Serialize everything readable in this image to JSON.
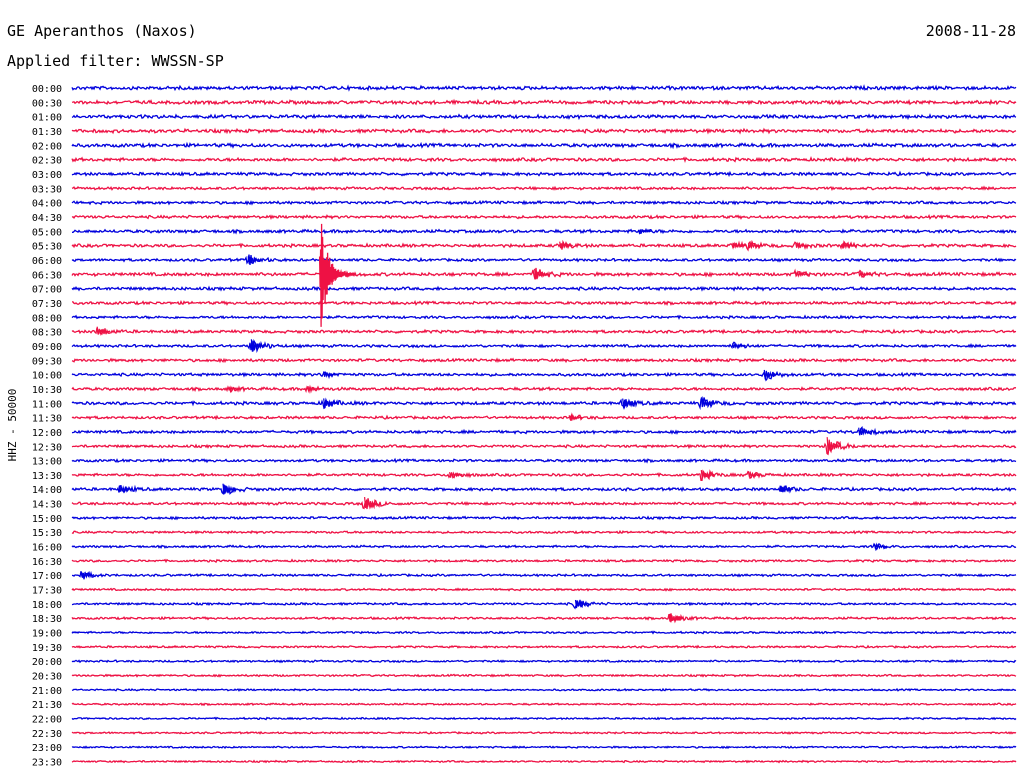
{
  "header": {
    "station": "GE Aperanthos (Naxos)",
    "filter": "Applied filter: WWSSN-SP",
    "date": "2008-11-28"
  },
  "chart_data": {
    "type": "line",
    "title": "GE Aperanthos (Naxos)",
    "subtitle": "Applied filter: WWSSN-SP",
    "date": "2008-11-28",
    "ylabel": "HHZ - 50000",
    "row_labels": [
      "00:00",
      "00:30",
      "01:00",
      "01:30",
      "02:00",
      "02:30",
      "03:00",
      "03:30",
      "04:00",
      "04:30",
      "05:00",
      "05:30",
      "06:00",
      "06:30",
      "07:00",
      "07:30",
      "08:00",
      "08:30",
      "09:00",
      "09:30",
      "10:00",
      "10:30",
      "11:00",
      "11:30",
      "12:00",
      "12:30",
      "13:00",
      "13:30",
      "14:00",
      "14:30",
      "15:00",
      "15:30",
      "16:00",
      "16:30",
      "17:00",
      "17:30",
      "18:00",
      "18:30",
      "19:00",
      "19:30",
      "20:00",
      "20:30",
      "21:00",
      "21:30",
      "22:00",
      "22:30",
      "23:00",
      "23:30"
    ],
    "trace_colors": [
      "#0000dd",
      "#ee1144"
    ],
    "noise_level": [
      1.6,
      1.6,
      1.6,
      1.6,
      1.6,
      1.5,
      1.4,
      1.2,
      1.3,
      1.3,
      1.4,
      1.4,
      1.2,
      1.5,
      1.4,
      1.3,
      1.2,
      1.3,
      1.2,
      1.3,
      1.3,
      1.3,
      1.4,
      1.2,
      1.3,
      1.2,
      1.2,
      1.2,
      1.3,
      1.2,
      1.1,
      1.0,
      1.0,
      1.0,
      1.0,
      0.9,
      1.0,
      1.0,
      0.9,
      0.9,
      0.9,
      0.9,
      0.8,
      0.8,
      0.8,
      0.8,
      0.8,
      0.8
    ],
    "events": [
      {
        "row": 10,
        "minute": 18.0,
        "amplitude": 2
      },
      {
        "row": 11,
        "minute": 15.5,
        "amplitude": 4
      },
      {
        "row": 11,
        "minute": 21.0,
        "amplitude": 3
      },
      {
        "row": 11,
        "minute": 21.5,
        "amplitude": 3
      },
      {
        "row": 11,
        "minute": 23.0,
        "amplitude": 3
      },
      {
        "row": 11,
        "minute": 24.5,
        "amplitude": 3
      },
      {
        "row": 12,
        "minute": 5.6,
        "amplitude": 5
      },
      {
        "row": 13,
        "minute": 8.0,
        "amplitude": 11
      },
      {
        "row": 13,
        "minute": 14.7,
        "amplitude": 6
      },
      {
        "row": 13,
        "minute": 23.0,
        "amplitude": 3
      },
      {
        "row": 13,
        "minute": 25.0,
        "amplitude": 3
      },
      {
        "row": 17,
        "minute": 0.8,
        "amplitude": 5
      },
      {
        "row": 18,
        "minute": 5.7,
        "amplitude": 8
      },
      {
        "row": 18,
        "minute": 21.0,
        "amplitude": 3
      },
      {
        "row": 20,
        "minute": 22.0,
        "amplitude": 6
      },
      {
        "row": 20,
        "minute": 8.0,
        "amplitude": 3
      },
      {
        "row": 21,
        "minute": 7.5,
        "amplitude": 3
      },
      {
        "row": 21,
        "minute": 5.0,
        "amplitude": 2
      },
      {
        "row": 22,
        "minute": 8.0,
        "amplitude": 5
      },
      {
        "row": 22,
        "minute": 17.5,
        "amplitude": 5
      },
      {
        "row": 22,
        "minute": 20.0,
        "amplitude": 6
      },
      {
        "row": 23,
        "minute": 15.8,
        "amplitude": 3
      },
      {
        "row": 24,
        "minute": 25.0,
        "amplitude": 5
      },
      {
        "row": 25,
        "minute": 24.0,
        "amplitude": 10
      },
      {
        "row": 27,
        "minute": 12.0,
        "amplitude": 4
      },
      {
        "row": 27,
        "minute": 20.0,
        "amplitude": 5
      },
      {
        "row": 27,
        "minute": 21.5,
        "amplitude": 3
      },
      {
        "row": 28,
        "minute": 1.5,
        "amplitude": 4
      },
      {
        "row": 28,
        "minute": 4.8,
        "amplitude": 6
      },
      {
        "row": 28,
        "minute": 22.5,
        "amplitude": 4
      },
      {
        "row": 29,
        "minute": 9.3,
        "amplitude": 7
      },
      {
        "row": 32,
        "minute": 25.5,
        "amplitude": 3
      },
      {
        "row": 34,
        "minute": 0.3,
        "amplitude": 4
      },
      {
        "row": 36,
        "minute": 16.0,
        "amplitude": 5
      },
      {
        "row": 37,
        "minute": 19.0,
        "amplitude": 5
      }
    ],
    "big_event": {
      "row": 13,
      "minute": 7.9,
      "amplitude": 60
    }
  }
}
